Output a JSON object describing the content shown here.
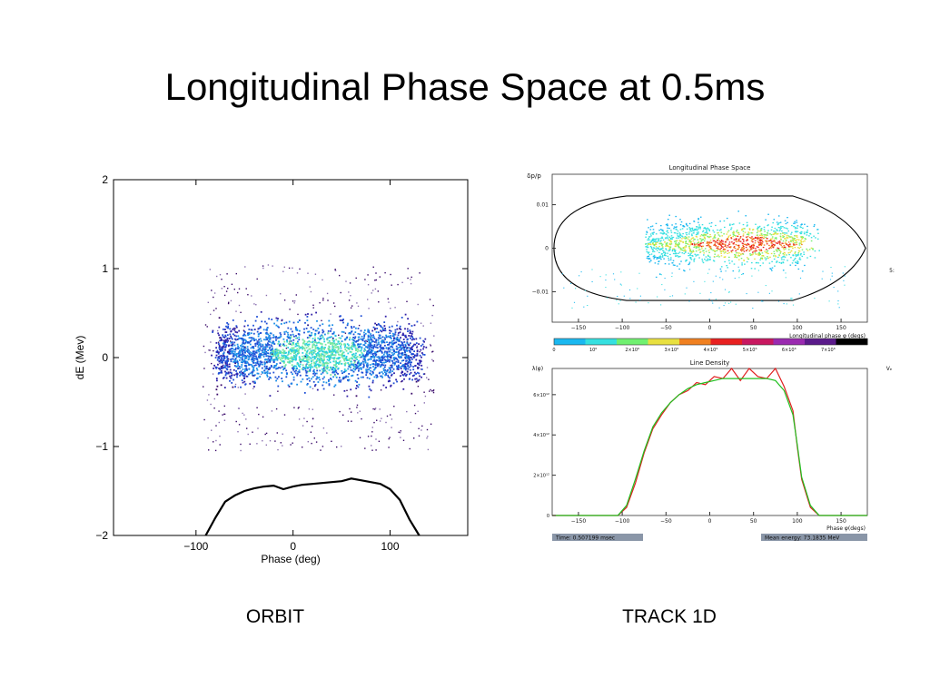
{
  "slide": {
    "title": "Longitudinal Phase Space at 0.5ms",
    "captions": [
      "ORBIT",
      "TRACK 1D"
    ]
  },
  "colors": {
    "scatter_palette": [
      "#3a0a6a",
      "#3020a8",
      "#1f4fd6",
      "#1e90e8",
      "#2ad0e0",
      "#7ae8a0"
    ],
    "colorbar": [
      "#1ab8f0",
      "#35e0e0",
      "#70f070",
      "#e8e040",
      "#f08020",
      "#e82020",
      "#c81860",
      "#9a2ab0",
      "#5a1a8a",
      "#000000"
    ],
    "line_sim": "#e02020",
    "line_ref": "#20c020"
  },
  "chart_data": [
    {
      "id": "orbit",
      "type": "scatter",
      "title": "",
      "xlabel": "Phase (deg)",
      "ylabel": "dE (Mev)",
      "xlim": [
        -185,
        180
      ],
      "ylim": [
        -2,
        2
      ],
      "xticks": [
        {
          "v": -100,
          "label": "−100"
        },
        {
          "v": 0,
          "label": "0"
        },
        {
          "v": 100,
          "label": "100"
        }
      ],
      "yticks": [
        {
          "v": 2,
          "label": "2"
        },
        {
          "v": 1,
          "label": "1"
        },
        {
          "v": 0,
          "label": "0"
        },
        {
          "v": -1,
          "label": "−1"
        },
        {
          "v": -2,
          "label": "−2"
        }
      ],
      "bunch": {
        "phase_range": [
          -80,
          130
        ],
        "dE_range": [
          -0.55,
          0.55
        ],
        "phase_center": 25,
        "dE_center": 0.05
      },
      "line_density": {
        "x": [
          -90,
          -80,
          -70,
          -60,
          -50,
          -40,
          -30,
          -20,
          -10,
          0,
          10,
          20,
          30,
          40,
          50,
          60,
          70,
          80,
          90,
          100,
          110,
          120,
          130
        ],
        "y": [
          -2.0,
          -1.8,
          -1.62,
          -1.55,
          -1.5,
          -1.47,
          -1.45,
          -1.44,
          -1.48,
          -1.45,
          -1.43,
          -1.42,
          -1.41,
          -1.4,
          -1.39,
          -1.36,
          -1.38,
          -1.4,
          -1.42,
          -1.48,
          -1.6,
          -1.82,
          -2.0
        ]
      }
    },
    {
      "id": "track1d-phase-space",
      "type": "scatter",
      "title": "Longitudinal Phase Space",
      "xlabel": "Longitudinal phase φ (degs)",
      "ylabel": "δp/p",
      "xlim": [
        -180,
        180
      ],
      "ylim": [
        -0.017,
        0.017
      ],
      "xticks": [
        {
          "v": -150,
          "label": "−150"
        },
        {
          "v": -100,
          "label": "−100"
        },
        {
          "v": -50,
          "label": "−50"
        },
        {
          "v": 0,
          "label": "0"
        },
        {
          "v": 50,
          "label": "50"
        },
        {
          "v": 100,
          "label": "100"
        },
        {
          "v": 150,
          "label": "150"
        }
      ],
      "yticks": [
        {
          "v": 0.01,
          "label": "0.01"
        },
        {
          "v": 0,
          "label": "0"
        },
        {
          "v": -0.01,
          "label": "−0.01"
        }
      ],
      "colorbar_ticks": [
        "0",
        "10⁶",
        "2×10⁶",
        "3×10⁶",
        "4×10⁶",
        "5×10⁶",
        "6×10⁶",
        "7×10⁶"
      ],
      "side_label": "5:"
    },
    {
      "id": "track1d-line-density",
      "type": "line",
      "title": "Line Density",
      "xlabel": "Phase φ(degs)",
      "ylabel": "λ(φ)",
      "right_label": "Vₑ",
      "xlim": [
        -180,
        180
      ],
      "ylim": [
        0,
        7300000000000.0
      ],
      "xticks": [
        {
          "v": -150,
          "label": "−150"
        },
        {
          "v": -100,
          "label": "−100"
        },
        {
          "v": -50,
          "label": "−50"
        },
        {
          "v": 0,
          "label": "0"
        },
        {
          "v": 50,
          "label": "50"
        },
        {
          "v": 100,
          "label": "100"
        },
        {
          "v": 150,
          "label": "150"
        }
      ],
      "yticks": [
        {
          "v": 0,
          "label": "0"
        },
        {
          "v": 2000000000000.0,
          "label": "2×10¹²"
        },
        {
          "v": 4000000000000.0,
          "label": "4×10¹²"
        },
        {
          "v": 6000000000000.0,
          "label": "6×10¹²"
        }
      ],
      "series": [
        {
          "x": [
            -180,
            -105,
            -95,
            -85,
            -75,
            -65,
            -55,
            -45,
            -35,
            -25,
            -15,
            -5,
            5,
            15,
            25,
            35,
            45,
            55,
            65,
            75,
            85,
            95,
            100,
            105,
            115,
            125,
            180
          ],
          "y": [
            0,
            0,
            400000000000.0,
            1600000000000.0,
            3100000000000.0,
            4300000000000.0,
            5000000000000.0,
            5600000000000.0,
            6000000000000.0,
            6200000000000.0,
            6600000000000.0,
            6500000000000.0,
            6900000000000.0,
            6800000000000.0,
            7400000000000.0,
            6700000000000.0,
            7600000000000.0,
            6900000000000.0,
            6800000000000.0,
            7500000000000.0,
            6400000000000.0,
            5200000000000.0,
            3400000000000.0,
            1800000000000.0,
            400000000000.0,
            0,
            0
          ]
        },
        {
          "x": [
            -180,
            -105,
            -95,
            -85,
            -75,
            -65,
            -55,
            -45,
            -35,
            -25,
            -15,
            -5,
            5,
            15,
            25,
            35,
            45,
            55,
            65,
            75,
            85,
            95,
            100,
            105,
            115,
            125,
            180
          ],
          "y": [
            0,
            0,
            500000000000.0,
            1800000000000.0,
            3200000000000.0,
            4400000000000.0,
            5100000000000.0,
            5600000000000.0,
            6000000000000.0,
            6300000000000.0,
            6500000000000.0,
            6600000000000.0,
            6700000000000.0,
            6800000000000.0,
            6800000000000.0,
            6800000000000.0,
            6800000000000.0,
            6800000000000.0,
            6800000000000.0,
            6700000000000.0,
            6200000000000.0,
            5000000000000.0,
            3500000000000.0,
            1900000000000.0,
            500000000000.0,
            0,
            0
          ]
        }
      ],
      "status": {
        "time": "Time: 0.507199 msec",
        "energy": "Mean energy: 73.1835 MeV"
      }
    }
  ]
}
